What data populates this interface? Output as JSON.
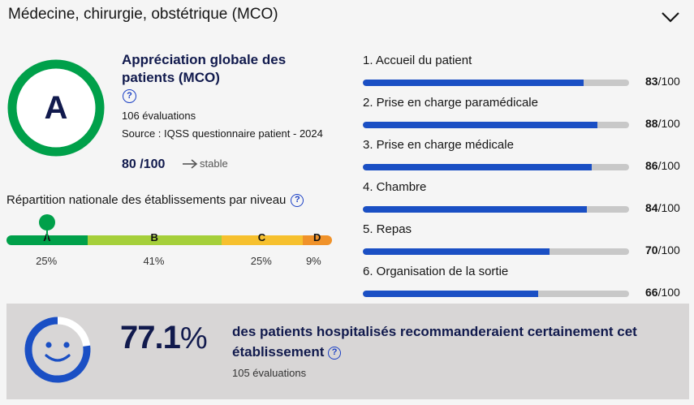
{
  "header": {
    "title": "Médecine, chirurgie, obstétrique (MCO)",
    "chevron_icon": "chevron-down-icon"
  },
  "score": {
    "grade": "A",
    "grade_color": "#00a04a",
    "title": "Appréciation globale des patients (MCO)",
    "help_icon": "?",
    "evaluations": "106 évaluations",
    "source": "Source : IQSS questionnaire patient - 2024",
    "value": "80 /100",
    "trend": "stable"
  },
  "distribution": {
    "title": "Répartition nationale des établissements par niveau",
    "help_icon": "?",
    "current_level": "A",
    "levels": [
      {
        "label": "A",
        "pct_label": "25%",
        "share": 25,
        "color": "#00a04a"
      },
      {
        "label": "B",
        "pct_label": "41%",
        "share": 41,
        "color": "#a5cf3a"
      },
      {
        "label": "C",
        "pct_label": "25%",
        "share": 25,
        "color": "#f6c02e"
      },
      {
        "label": "D",
        "pct_label": "9%",
        "share": 9,
        "color": "#f0922a"
      }
    ]
  },
  "criteria": [
    {
      "label": "1. Accueil du patient",
      "score": "83",
      "value": 83
    },
    {
      "label": "2. Prise en charge paramédicale",
      "score": "88",
      "value": 88
    },
    {
      "label": "3. Prise en charge médicale",
      "score": "86",
      "value": 86
    },
    {
      "label": "4. Chambre",
      "score": "84",
      "value": 84
    },
    {
      "label": "5. Repas",
      "score": "70",
      "value": 70
    },
    {
      "label": "6. Organisation de la sortie",
      "score": "66",
      "value": 66
    }
  ],
  "criteria_max": "/100",
  "recommendation": {
    "pct_value": "77.1",
    "pct_unit": "%",
    "ring_fraction": 0.771,
    "text": "des patients hospitalisés recommanderaient certainement cet établissement",
    "help_icon": "?",
    "evaluations": "105 évaluations",
    "ring_color": "#1a4fc4"
  }
}
